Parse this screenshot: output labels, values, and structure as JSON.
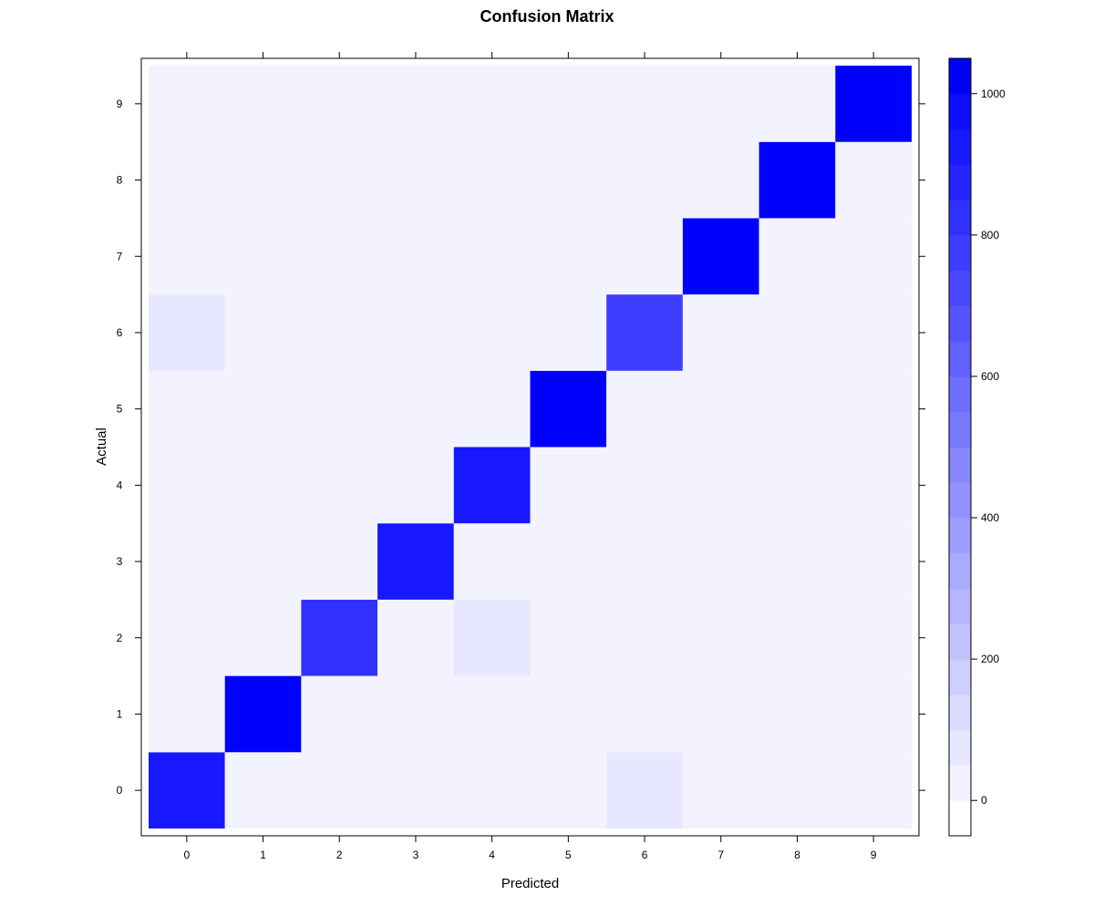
{
  "chart_data": {
    "type": "heatmap",
    "title": "Confusion Matrix",
    "xlabel": "Predicted",
    "ylabel": "Actual",
    "x_categories": [
      "0",
      "1",
      "2",
      "3",
      "4",
      "5",
      "6",
      "7",
      "8",
      "9"
    ],
    "y_categories": [
      "0",
      "1",
      "2",
      "3",
      "4",
      "5",
      "6",
      "7",
      "8",
      "9"
    ],
    "matrix": [
      [
        930,
        0,
        25,
        25,
        25,
        0,
        80,
        0,
        25,
        0
      ],
      [
        0,
        1055,
        0,
        25,
        25,
        0,
        25,
        0,
        0,
        0
      ],
      [
        25,
        0,
        800,
        25,
        80,
        0,
        25,
        0,
        0,
        0
      ],
      [
        25,
        25,
        25,
        930,
        25,
        0,
        25,
        0,
        0,
        0
      ],
      [
        0,
        0,
        25,
        25,
        930,
        0,
        25,
        0,
        0,
        0
      ],
      [
        0,
        0,
        0,
        0,
        0,
        1030,
        0,
        25,
        0,
        25
      ],
      [
        80,
        25,
        25,
        25,
        25,
        0,
        750,
        0,
        25,
        0
      ],
      [
        0,
        0,
        0,
        0,
        0,
        25,
        0,
        1030,
        0,
        25
      ],
      [
        25,
        0,
        0,
        25,
        25,
        0,
        25,
        25,
        1030,
        0
      ],
      [
        0,
        0,
        0,
        0,
        0,
        25,
        0,
        25,
        0,
        1000
      ]
    ],
    "colorscale": {
      "min": -50,
      "max": 1050,
      "step": 50,
      "low_color": "#ffffff",
      "high_color": "#0000ff",
      "ticks": [
        0,
        200,
        400,
        600,
        800,
        1000
      ]
    },
    "grid": false,
    "legend_placement": "right"
  }
}
